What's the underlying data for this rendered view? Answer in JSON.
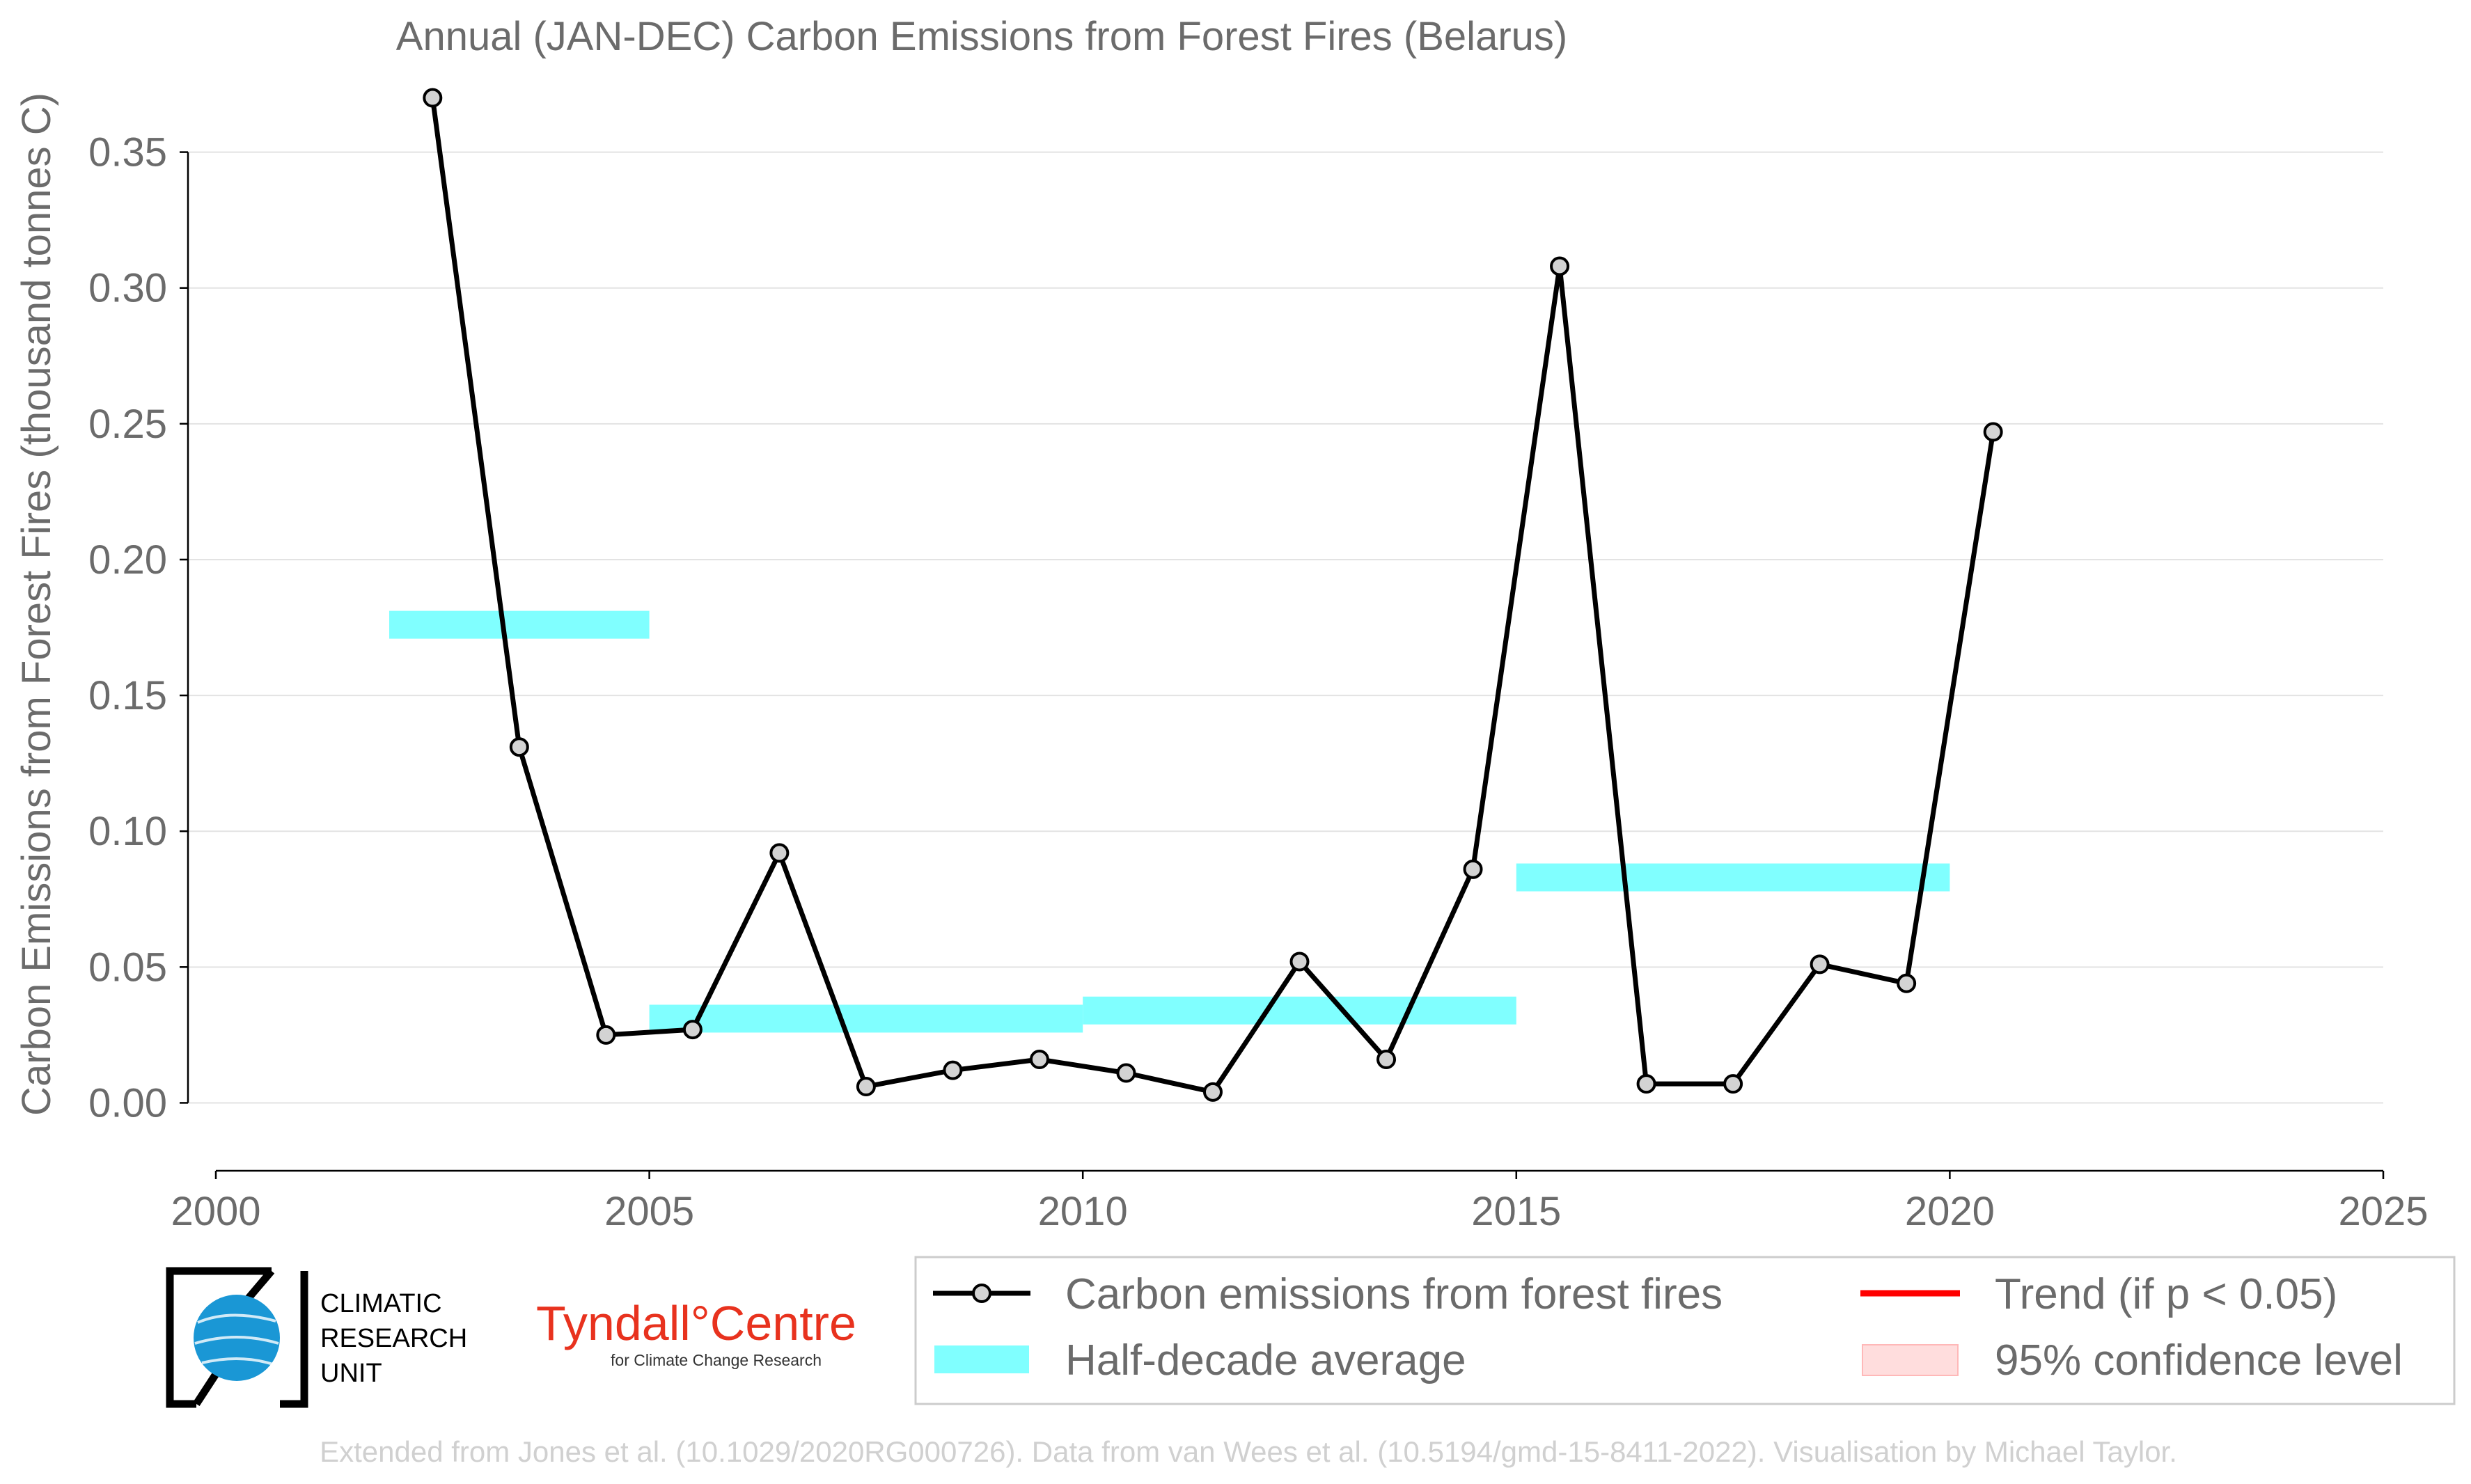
{
  "chart_data": {
    "type": "line",
    "title": "Annual (JAN-DEC) Carbon Emissions from Forest Fires (Belarus)",
    "xlabel": "",
    "ylabel": "Carbon Emissions from Forest Fires (thousand tonnes C)",
    "xlim": [
      2000,
      2025
    ],
    "ylim": [
      -0.025,
      0.375
    ],
    "xticks": [
      2000,
      2005,
      2010,
      2015,
      2020,
      2025
    ],
    "yticks": [
      0.0,
      0.05,
      0.1,
      0.15,
      0.2,
      0.25,
      0.3,
      0.35
    ],
    "x_tick_labels": [
      "2000",
      "2005",
      "2010",
      "2015",
      "2020",
      "2025"
    ],
    "y_tick_labels": [
      "0.00",
      "0.05",
      "0.10",
      "0.15",
      "0.20",
      "0.25",
      "0.30",
      "0.35"
    ],
    "grid": "horizontal",
    "legend_position": "bottom",
    "series": [
      {
        "name": "Carbon emissions from forest fires",
        "color": "#000000",
        "x": [
          2002.5,
          2003.5,
          2004.5,
          2005.5,
          2006.5,
          2007.5,
          2008.5,
          2009.5,
          2010.5,
          2011.5,
          2012.5,
          2013.5,
          2014.5,
          2015.5,
          2016.5,
          2017.5,
          2018.5,
          2019.5,
          2020.5
        ],
        "values": [
          0.37,
          0.131,
          0.025,
          0.027,
          0.092,
          0.006,
          0.012,
          0.016,
          0.011,
          0.004,
          0.052,
          0.016,
          0.086,
          0.308,
          0.007,
          0.007,
          0.051,
          0.044,
          0.247
        ]
      }
    ],
    "half_decade_averages": {
      "name": "Half-decade average",
      "color": "#80ffff",
      "periods": [
        {
          "start": 2002,
          "end": 2005,
          "value": 0.176
        },
        {
          "start": 2005,
          "end": 2010,
          "value": 0.031
        },
        {
          "start": 2010,
          "end": 2015,
          "value": 0.034
        },
        {
          "start": 2015,
          "end": 2020,
          "value": 0.083
        }
      ]
    },
    "legend": [
      {
        "label": "Carbon emissions from forest fires",
        "symbol": "line-marker",
        "color": "#000000"
      },
      {
        "label": "Trend (if p < 0.05)",
        "symbol": "line",
        "color": "#ff0000"
      },
      {
        "label": "Half-decade average",
        "symbol": "band",
        "color": "#80ffff"
      },
      {
        "label": "95% confidence level",
        "symbol": "band",
        "color": "#ffdddd"
      }
    ]
  },
  "logos": {
    "cru_lines": [
      "CLIMATIC",
      "RESEARCH",
      "UNIT"
    ],
    "tyndall_main": "Tyndall°Centre",
    "tyndall_sub": "for Climate Change Research"
  },
  "credit": "Extended from Jones et al. (10.1029/2020RG000726). Data from van Wees et al. (10.5194/gmd-15-8411-2022). Visualisation by Michael Taylor."
}
